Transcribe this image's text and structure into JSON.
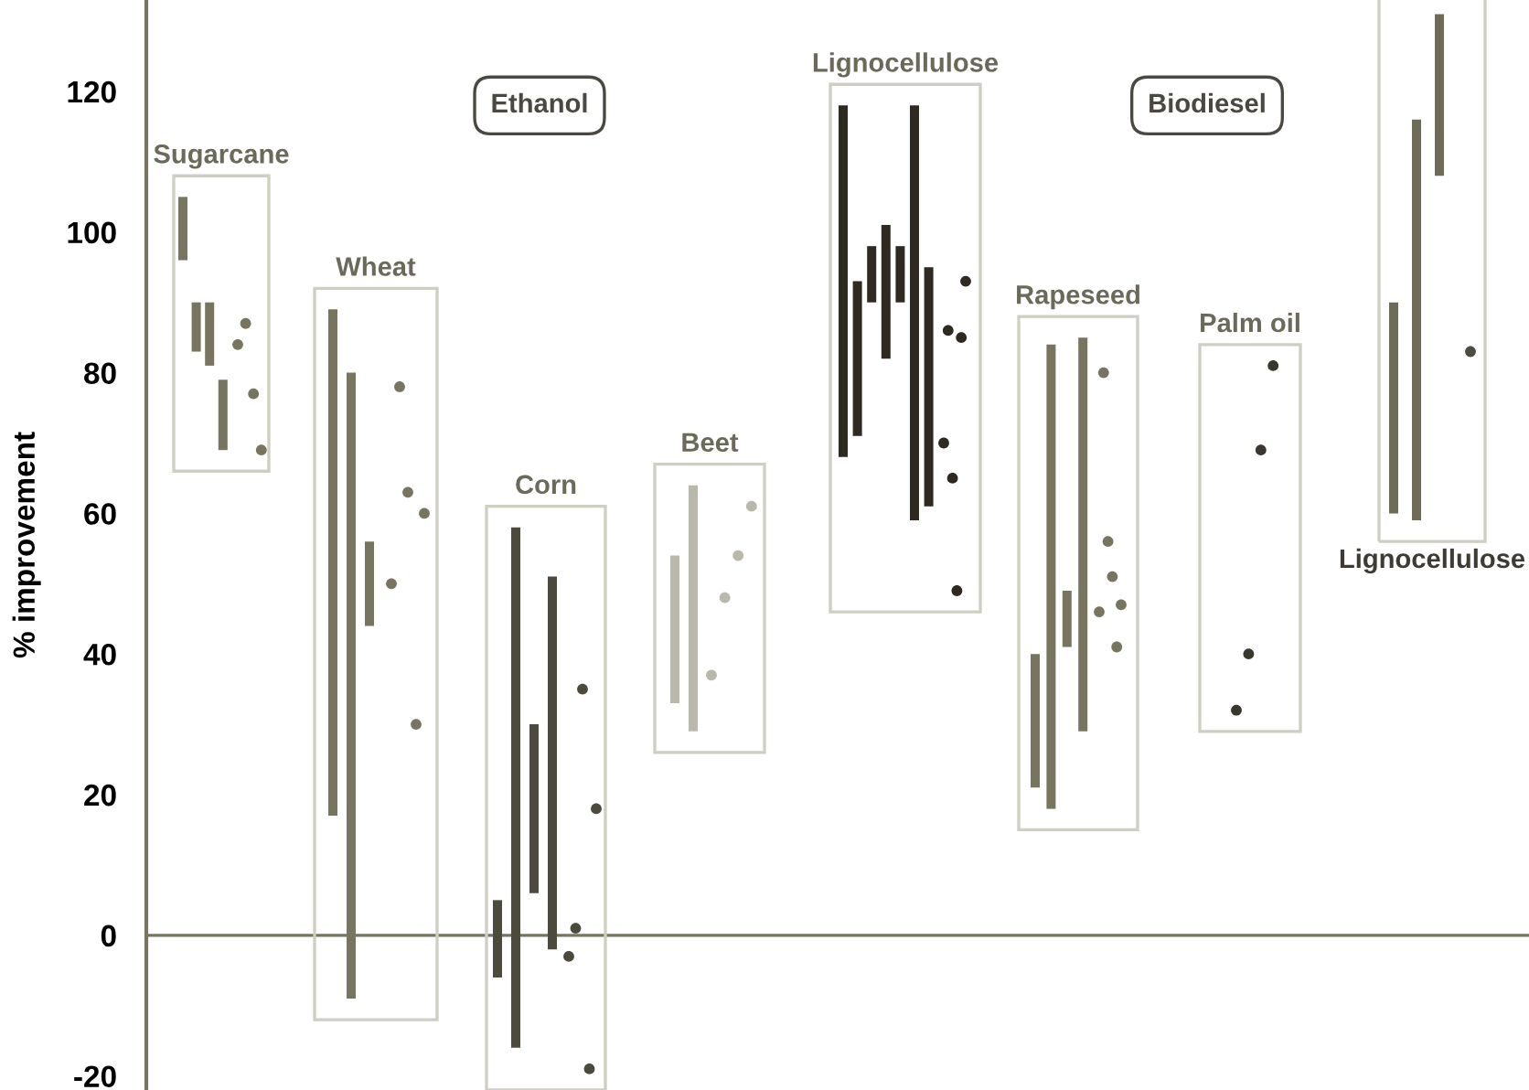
{
  "chart_data": {
    "type": "bar",
    "ylabel": "% improvement",
    "categories": [
      "Sugarcane",
      "Wheat",
      "Corn",
      "Beet",
      "Lignocellulose",
      "Rapeseed",
      "Palm oil",
      "Lignocellulose"
    ],
    "series": [
      {
        "values": [
          9,
          72,
          11,
          21,
          50,
          19,
          null,
          30
        ],
        "base": [
          96,
          17,
          -6,
          33,
          68,
          21,
          null,
          60
        ],
        "colors": [
          "#77745f",
          "#77745f",
          "#4c4a3c",
          "#b9b8aa",
          "#2e2a20",
          "#77745f",
          null,
          "#6e6b58"
        ]
      },
      {
        "values": [
          7,
          89,
          74,
          35,
          22,
          66,
          null,
          57
        ],
        "base": [
          83,
          -9,
          -16,
          29,
          71,
          18,
          null,
          59
        ],
        "colors": [
          "#77745f",
          "#77745f",
          "#4c4a3c",
          "#b9b8aa",
          "#2e2a20",
          "#77745f",
          null,
          "#6e6b58"
        ]
      },
      {
        "values": [
          9,
          12,
          24,
          null,
          8,
          8,
          null,
          23
        ],
        "base": [
          81,
          44,
          6,
          null,
          90,
          41,
          null,
          108
        ],
        "colors": [
          "#77745f",
          "#77745f",
          "#4c4a3c",
          null,
          "#2e2a20",
          "#77745f",
          null,
          "#6e6b58"
        ]
      },
      {
        "values": [
          10,
          null,
          53,
          null,
          19,
          56,
          null,
          null
        ],
        "base": [
          69,
          null,
          -2,
          null,
          82,
          29,
          null,
          null
        ],
        "colors": [
          "#77745f",
          null,
          "#4c4a3c",
          null,
          "#2e2a20",
          "#77745f",
          null,
          null
        ]
      },
      {
        "values": [
          null,
          null,
          null,
          null,
          8,
          null,
          null,
          null
        ],
        "base": [
          null,
          null,
          null,
          null,
          90,
          null,
          null,
          null
        ],
        "colors": [
          null,
          null,
          null,
          null,
          "#2e2a20",
          null,
          null,
          null
        ]
      },
      {
        "values": [
          null,
          null,
          null,
          null,
          59,
          null,
          null,
          null
        ],
        "base": [
          null,
          null,
          null,
          null,
          59,
          null,
          null,
          null
        ],
        "colors": [
          null,
          null,
          null,
          null,
          "#2e2a20",
          null,
          null,
          null
        ]
      },
      {
        "values": [
          null,
          null,
          null,
          null,
          34,
          null,
          null,
          null
        ],
        "base": [
          null,
          null,
          null,
          null,
          61,
          null,
          null,
          null
        ],
        "colors": [
          null,
          null,
          null,
          null,
          "#2e2a20",
          null,
          null,
          null
        ]
      },
      {
        "type": "scatter",
        "values": [
          84,
          50,
          -3,
          37,
          70,
          46,
          32,
          83
        ],
        "colors": [
          "#77745f",
          "#77745f",
          "#4c4a3c",
          "#b9b8aa",
          "#2e2a20",
          "#77745f",
          "#3a382e",
          "#4e4c40"
        ]
      },
      {
        "type": "scatter",
        "values": [
          87,
          78,
          1,
          48,
          86,
          80,
          40,
          null
        ],
        "colors": [
          "#77745f",
          "#77745f",
          "#4c4a3c",
          "#b9b8aa",
          "#2e2a20",
          "#77745f",
          "#3a382e",
          null
        ]
      },
      {
        "type": "scatter",
        "values": [
          77,
          63,
          35,
          54,
          65,
          56,
          69,
          null
        ],
        "colors": [
          "#77745f",
          "#77745f",
          "#4c4a3c",
          "#b9b8aa",
          "#2e2a20",
          "#77745f",
          "#3a382e",
          null
        ]
      },
      {
        "type": "scatter",
        "values": [
          69,
          30,
          -19,
          61,
          49,
          51,
          81,
          null
        ],
        "colors": [
          "#77745f",
          "#77745f",
          "#4c4a3c",
          "#b9b8aa",
          "#2e2a20",
          "#77745f",
          "#3a382e",
          null
        ]
      },
      {
        "type": "scatter",
        "values": [
          null,
          60,
          18,
          null,
          85,
          41,
          null,
          null
        ],
        "colors": [
          null,
          "#77745f",
          "#4c4a3c",
          null,
          "#2e2a20",
          "#77745f",
          null,
          null
        ]
      },
      {
        "type": "scatter",
        "values": [
          null,
          null,
          null,
          null,
          93,
          47,
          null,
          null
        ],
        "colors": [
          null,
          null,
          null,
          null,
          "#2e2a20",
          "#77745f",
          null,
          null
        ]
      }
    ],
    "marker": "circle",
    "ylim": [
      -22,
      133
    ],
    "yticks": [
      -20,
      0,
      20,
      40,
      60,
      80,
      100,
      120
    ],
    "tick_labels": "y",
    "ref_lines": [
      {
        "axis": "y",
        "value": 0,
        "color": "#77745f"
      }
    ],
    "annotations": [
      "Ethanol",
      "Biodiesel"
    ]
  }
}
